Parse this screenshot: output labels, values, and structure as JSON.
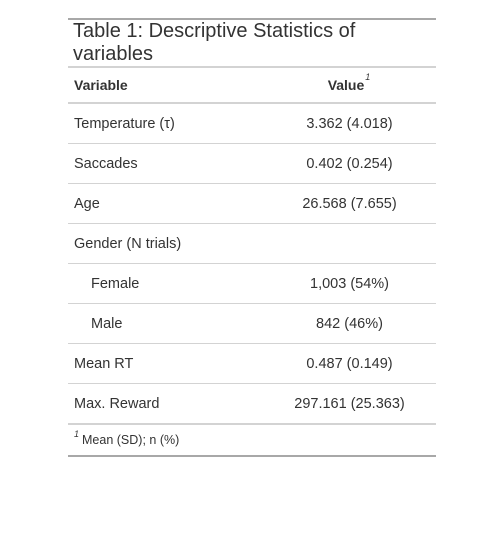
{
  "table": {
    "caption": "Table 1: Descriptive Statistics of variables",
    "headers": {
      "variable": "Variable",
      "value": "Value",
      "value_footnote_mark": "1"
    },
    "rows": [
      {
        "label": "Temperature (τ)",
        "value": "3.362 (4.018)",
        "indent": false
      },
      {
        "label": "Saccades",
        "value": "0.402 (0.254)",
        "indent": false
      },
      {
        "label": "Age",
        "value": "26.568 (7.655)",
        "indent": false
      },
      {
        "label": "Gender (N trials)",
        "value": "",
        "indent": false
      },
      {
        "label": "Female",
        "value": "1,003 (54%)",
        "indent": true
      },
      {
        "label": "Male",
        "value": "842 (46%)",
        "indent": true
      },
      {
        "label": "Mean RT",
        "value": "0.487 (0.149)",
        "indent": false
      },
      {
        "label": "Max. Reward",
        "value": "297.161 (25.363)",
        "indent": false
      }
    ],
    "footnote": {
      "mark": "1",
      "text": "Mean (SD); n (%)"
    }
  }
}
